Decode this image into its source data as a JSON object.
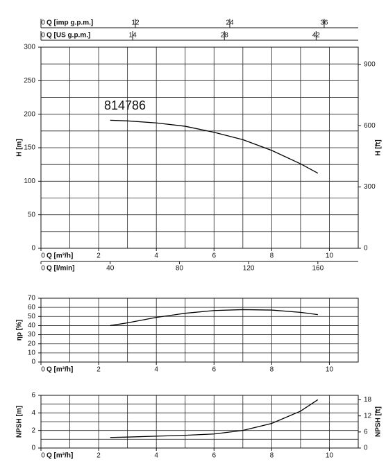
{
  "chart_data": [
    {
      "type": "line",
      "annotation": "814786",
      "ylabel": "H [m]",
      "y2label": "H [ft]",
      "xlabel": "Q [m³/h]",
      "xlim": [
        0,
        11
      ],
      "xticks": [
        0,
        2,
        4,
        6,
        8,
        10
      ],
      "xgrid": [
        0,
        1,
        2,
        3,
        4,
        5,
        6,
        7,
        8,
        9,
        10,
        11
      ],
      "ylim": [
        0,
        300
      ],
      "yticks": [
        0,
        50,
        100,
        150,
        200,
        250,
        300
      ],
      "ygrid": [
        0,
        25,
        50,
        75,
        100,
        125,
        150,
        175,
        200,
        225,
        250,
        275,
        300
      ],
      "y2lim": [
        0,
        984.25
      ],
      "y2ticks": [
        0,
        300,
        600,
        900
      ],
      "extra_x_axes": [
        {
          "position": "top",
          "label": "Q [imp g.p.m.]",
          "xlim": [
            0,
            40.33
          ],
          "xticks": [
            0,
            12,
            24,
            36
          ]
        },
        {
          "position": "top",
          "label": "Q [US g.p.m.]",
          "xlim": [
            0,
            48.43
          ],
          "xticks": [
            0,
            14,
            28,
            42
          ]
        },
        {
          "position": "bottom",
          "label": "Q [l/min]",
          "xlim": [
            0,
            183.33
          ],
          "xticks": [
            0,
            40,
            80,
            120,
            160
          ]
        }
      ],
      "x": [
        2.4,
        3,
        4,
        5,
        6,
        7,
        8,
        9,
        9.6
      ],
      "series": [
        {
          "color": "#000000",
          "values": [
            191,
            190,
            187,
            182,
            173,
            162,
            146,
            126,
            112
          ]
        }
      ]
    },
    {
      "type": "line",
      "ylabel": "ηp [%]",
      "xlabel": "Q [m³/h]",
      "xlim": [
        0,
        11
      ],
      "xticks": [
        0,
        2,
        4,
        6,
        8,
        10
      ],
      "xgrid": [
        0,
        1,
        2,
        3,
        4,
        5,
        6,
        7,
        8,
        9,
        10,
        11
      ],
      "ylim": [
        0,
        70
      ],
      "yticks": [
        0,
        10,
        20,
        30,
        40,
        50,
        60,
        70
      ],
      "ygrid": [
        0,
        10,
        20,
        30,
        40,
        50,
        60,
        70
      ],
      "x": [
        2.4,
        3,
        4,
        5,
        6,
        7,
        8,
        9,
        9.6
      ],
      "series": [
        {
          "color": "#000000",
          "values": [
            40,
            43,
            49,
            53.5,
            56.5,
            57.5,
            57,
            54.5,
            52
          ]
        }
      ]
    },
    {
      "type": "line",
      "ylabel": "NPSH [m]",
      "y2label": "NPSH [ft]",
      "xlabel": "Q [m³/h]",
      "xlim": [
        0,
        11
      ],
      "xticks": [
        0,
        2,
        4,
        6,
        8,
        10
      ],
      "xgrid": [
        0,
        1,
        2,
        3,
        4,
        5,
        6,
        7,
        8,
        9,
        10,
        11
      ],
      "ylim": [
        0,
        6
      ],
      "yticks": [
        0,
        2,
        4,
        6
      ],
      "ygrid": [
        0,
        1,
        2,
        3,
        4,
        5,
        6
      ],
      "y2lim": [
        0,
        19.685
      ],
      "y2ticks": [
        0,
        6,
        12,
        18
      ],
      "x": [
        2.4,
        3,
        4,
        5,
        6,
        7,
        8,
        9,
        9.6
      ],
      "series": [
        {
          "color": "#000000",
          "values": [
            1.2,
            1.25,
            1.35,
            1.45,
            1.6,
            2.0,
            2.8,
            4.2,
            5.5
          ]
        }
      ]
    }
  ]
}
